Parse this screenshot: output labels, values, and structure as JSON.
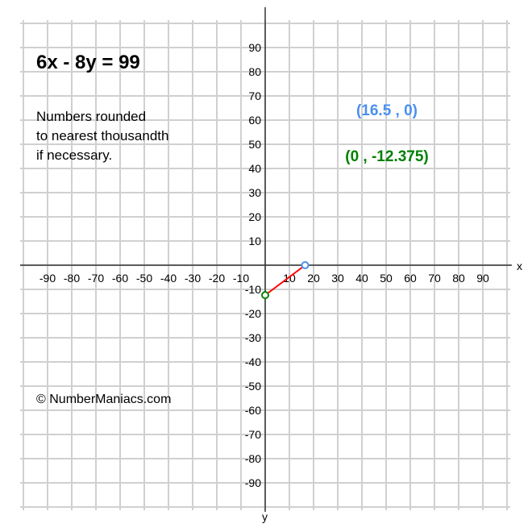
{
  "chart_data": {
    "type": "line",
    "title": "6x - 8y = 99",
    "note": [
      "Numbers rounded",
      "to nearest thousandth",
      "if necessary."
    ],
    "copyright": "© NumberManiacs.com",
    "xlabel": "x",
    "ylabel": "y",
    "xlim": [
      -100,
      100
    ],
    "ylim": [
      -100,
      100
    ],
    "grid": true,
    "xticks": [
      -90,
      -80,
      -70,
      -60,
      -50,
      -40,
      -30,
      -20,
      -10,
      10,
      20,
      30,
      40,
      50,
      60,
      70,
      80,
      90
    ],
    "yticks": [
      90,
      80,
      70,
      60,
      50,
      40,
      30,
      20,
      10,
      -10,
      -20,
      -30,
      -40,
      -50,
      -60,
      -70,
      -80,
      -90
    ],
    "segment": {
      "from": [
        0,
        -12.375
      ],
      "to": [
        16.5,
        0
      ],
      "color": "#ff0000"
    },
    "points": [
      {
        "x": 16.5,
        "y": 0,
        "label": "(16.5 , 0)",
        "color": "#4a90f0"
      },
      {
        "x": 0,
        "y": -12.375,
        "label": "(0 , -12.375)",
        "color": "#008000"
      }
    ]
  }
}
